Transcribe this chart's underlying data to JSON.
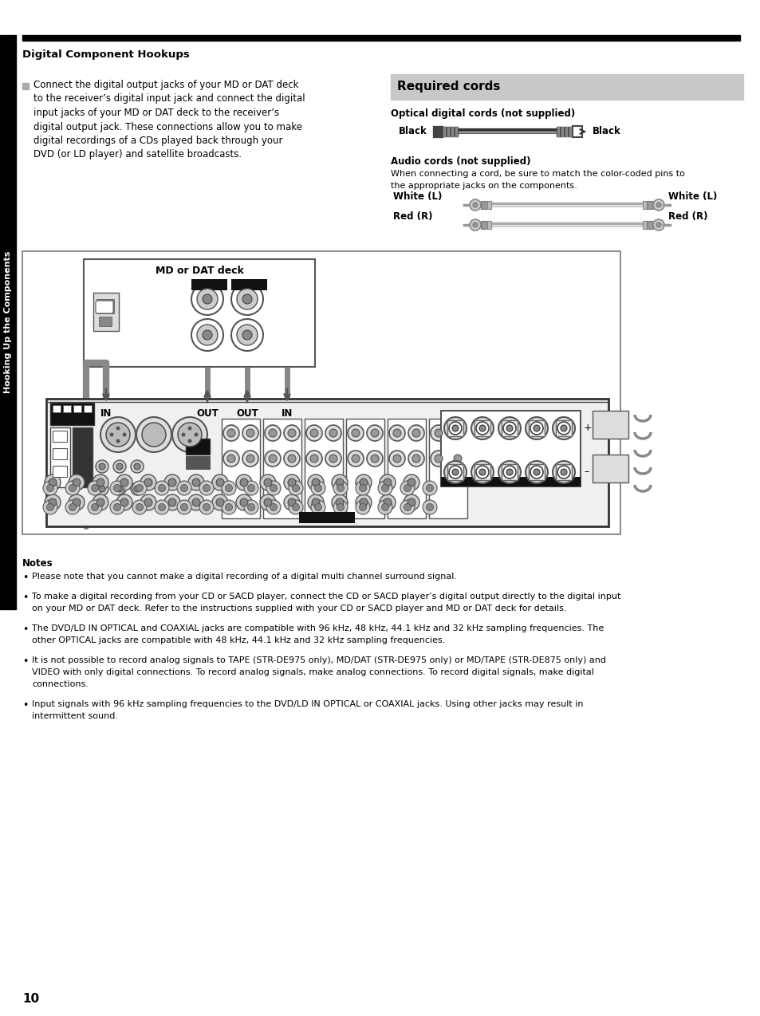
{
  "page_number": "10",
  "section_title": "Digital Component Hookups",
  "sidebar_text": "Hooking Up the Components",
  "intro_text": [
    "Connect the digital output jacks of your MD or DAT deck",
    "to the receiver’s digital input jack and connect the digital",
    "input jacks of your MD or DAT deck to the receiver’s",
    "digital output jack. These connections allow you to make",
    "digital recordings of a CDs played back through your",
    "DVD (or LD player) and satellite broadcasts."
  ],
  "required_cords_title": "Required cords",
  "optical_label": "Optical digital cords (not supplied)",
  "audio_label": "Audio cords (not supplied)",
  "audio_desc": [
    "When connecting a cord, be sure to match the color-coded pins to",
    "the appropriate jacks on the components."
  ],
  "white_l": "White (L)",
  "red_r": "Red (R)",
  "notes_title": "Notes",
  "notes": [
    [
      "Please note that you cannot make a digital recording of a digital multi channel surround signal."
    ],
    [
      "To make a digital recording from your CD or SACD player, connect the CD or SACD player’s digital output directly to the digital input",
      "on your MD or DAT deck. Refer to the instructions supplied with your CD or SACD player and MD or DAT deck for details."
    ],
    [
      "The DVD/LD IN OPTICAL and COAXIAL jacks are compatible with 96 kHz, 48 kHz, 44.1 kHz and 32 kHz sampling frequencies. The",
      "other OPTICAL jacks are compatible with 48 kHz, 44.1 kHz and 32 kHz sampling frequencies."
    ],
    [
      "It is not possible to record analog signals to TAPE (STR-DE975 only), MD/DAT (STR-DE975 only) or MD/TAPE (STR-DE875 only) and",
      "VIDEO with only digital connections. To record analog signals, make analog connections. To record digital signals, make digital",
      "connections."
    ],
    [
      "Input signals with 96 kHz sampling frequencies to the DVD/LD IN OPTICAL or COAXIAL jacks. Using other jacks may result in",
      "intermittent sound."
    ]
  ],
  "md_deck_label": "MD or DAT deck",
  "in_out_labels": [
    "IN",
    "OUT",
    "OUT",
    "IN"
  ],
  "bg_color": "#ffffff",
  "required_cords_bg": "#c8c8c8"
}
